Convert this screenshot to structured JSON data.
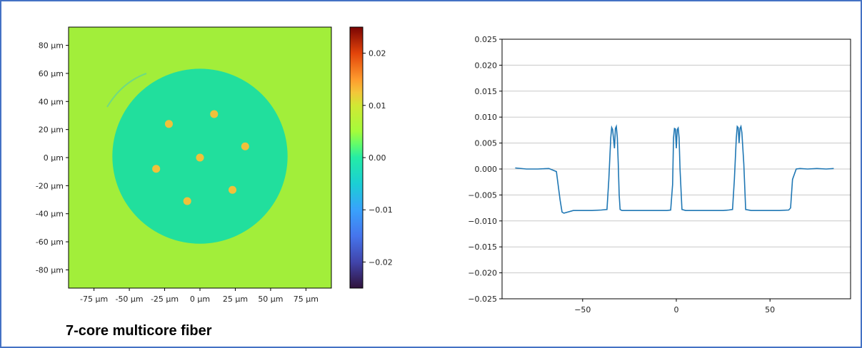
{
  "caption": "7-core multicore fiber",
  "colors": {
    "background_level": "#a2ee3a",
    "cladding_level": "#21df9d",
    "core_level": "#f0c13b",
    "line": "#1f77b4",
    "frame": "#4472c4",
    "grid": "#c8c8c8"
  },
  "chart_data": [
    {
      "type": "heatmap",
      "title": "",
      "xlabel": "",
      "ylabel": "",
      "xlim": [
        -93,
        93
      ],
      "ylim": [
        -93,
        93
      ],
      "x_ticks": [
        -75,
        -50,
        -25,
        0,
        25,
        50,
        75
      ],
      "y_ticks": [
        80,
        60,
        40,
        20,
        0,
        -20,
        -40,
        -60,
        -80
      ],
      "x_tick_labels": [
        "-75 µm",
        "-50 µm",
        "-25 µm",
        "0 µm",
        "25 µm",
        "50 µm",
        "75 µm"
      ],
      "y_tick_labels": [
        "80 µm",
        "60 µm",
        "40 µm",
        "20 µm",
        "0 µm",
        "-20 µm",
        "-40 µm",
        "-60 µm",
        "-80 µm"
      ],
      "background_value": 0.0,
      "cladding": {
        "center": [
          0,
          1
        ],
        "radius": 62,
        "value": -0.008
      },
      "cores": [
        {
          "x": 0,
          "y": 0,
          "value": 0.008
        },
        {
          "x": -22,
          "y": 24,
          "value": 0.008
        },
        {
          "x": 10,
          "y": 31,
          "value": 0.008
        },
        {
          "x": 32,
          "y": 8,
          "value": 0.008
        },
        {
          "x": -31,
          "y": -8,
          "value": 0.008
        },
        {
          "x": -9,
          "y": -31,
          "value": 0.008
        },
        {
          "x": 23,
          "y": -23,
          "value": 0.008
        }
      ],
      "core_radius": 2.8,
      "colorbar": {
        "range": [
          -0.025,
          0.025
        ],
        "colormap": "turbo",
        "ticks": [
          0.02,
          0.01,
          0.0,
          -0.01,
          -0.02
        ],
        "tick_labels": [
          "0.02",
          "0.01",
          "0.00",
          "−0.01",
          "−0.02"
        ]
      }
    },
    {
      "type": "line",
      "title": "",
      "xlabel": "",
      "ylabel": "",
      "xlim": [
        -93,
        93
      ],
      "ylim": [
        -0.025,
        0.025
      ],
      "grid": "horizontal",
      "x_ticks": [
        -50,
        0,
        50
      ],
      "x_tick_labels": [
        "−50",
        "0",
        "50"
      ],
      "y_ticks": [
        0.025,
        0.02,
        0.015,
        0.01,
        0.005,
        0.0,
        -0.005,
        -0.01,
        -0.015,
        -0.02,
        -0.025
      ],
      "y_tick_labels": [
        "0.025",
        "0.020",
        "0.015",
        "0.010",
        "0.005",
        "0.000",
        "−0.005",
        "−0.010",
        "−0.015",
        "−0.020",
        "−0.025"
      ],
      "series": [
        {
          "x": [
            -86,
            -80,
            -74,
            -68,
            -64,
            -62,
            -61,
            -60,
            -55,
            -50,
            -45,
            -40,
            -37,
            -36,
            -35,
            -34.5,
            -34,
            -33,
            -32.5,
            -32,
            -31.5,
            -31,
            -30.5,
            -30,
            -29,
            -28,
            -25,
            -20,
            -15,
            -10,
            -5,
            -3,
            -2,
            -1.5,
            -1,
            -0.5,
            0,
            0.5,
            1,
            1.5,
            2,
            3,
            5,
            10,
            15,
            20,
            25,
            28,
            30,
            31,
            32,
            32.5,
            33,
            33.5,
            34,
            34.5,
            35,
            36,
            37,
            40,
            45,
            50,
            55,
            60,
            61,
            62,
            64,
            66,
            70,
            75,
            80,
            84
          ],
          "y": [
            0.0002,
            0.0,
            0.0,
            0.0001,
            -0.0005,
            -0.006,
            -0.0083,
            -0.0085,
            -0.008,
            -0.008,
            -0.008,
            -0.0079,
            -0.0078,
            -0.002,
            0.006,
            0.008,
            0.0076,
            0.004,
            0.0078,
            0.0082,
            0.006,
            0.001,
            -0.005,
            -0.0078,
            -0.008,
            -0.008,
            -0.008,
            -0.008,
            -0.008,
            -0.008,
            -0.008,
            -0.0079,
            -0.003,
            0.006,
            0.0078,
            0.0077,
            0.004,
            0.0076,
            0.0079,
            0.006,
            0.0,
            -0.0078,
            -0.008,
            -0.008,
            -0.008,
            -0.008,
            -0.008,
            -0.0079,
            -0.0078,
            -0.002,
            0.006,
            0.0082,
            0.008,
            0.005,
            0.0078,
            0.0082,
            0.007,
            0.001,
            -0.0078,
            -0.008,
            -0.008,
            -0.008,
            -0.008,
            -0.0079,
            -0.0075,
            -0.002,
            0.0,
            0.0001,
            0.0,
            0.0001,
            0.0,
            0.0001
          ]
        }
      ]
    }
  ]
}
